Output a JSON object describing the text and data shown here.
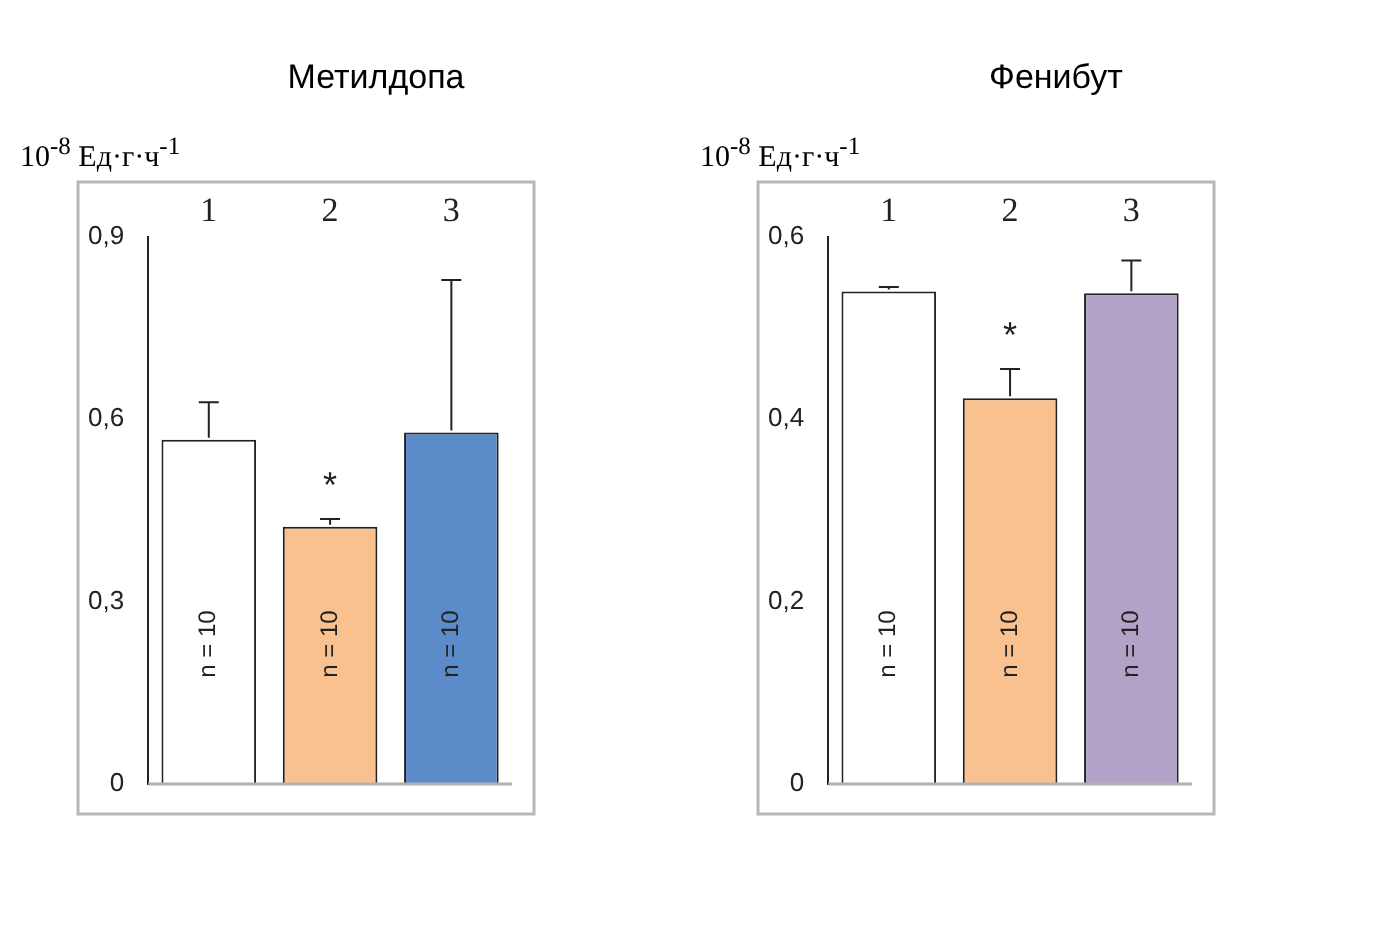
{
  "chart_data": [
    {
      "type": "bar",
      "title": "Метилдопа",
      "ylabel": "10$^{-8}$ Ед·г·ч$^{-1}$",
      "categories": [
        "1",
        "2",
        "3"
      ],
      "series": [
        {
          "colors": [
            "#ffffff",
            "#f8c18f",
            "#5b8bc8"
          ],
          "values": [
            0.566,
            0.423,
            0.578
          ],
          "errors": [
            [
              0.566,
              0.628
            ],
            [
              0.423,
              0.436
            ],
            [
              0.578,
              0.829
            ]
          ]
        }
      ],
      "ylim": [
        0,
        0.9
      ],
      "yticks": [
        {
          "value": 0,
          "label": "0"
        },
        {
          "value": 0.3,
          "label": "0,3"
        },
        {
          "value": 0.6,
          "label": "0,6"
        },
        {
          "value": 0.9,
          "label": "0,9"
        }
      ],
      "grid": false,
      "legend": false,
      "annotations": [
        "n = 10",
        "n = 10",
        "n = 10",
        "*"
      ]
    },
    {
      "type": "bar",
      "title": "Фенибут",
      "ylabel": "10$^{-8}$ Ед·г·ч$^{-1}$",
      "categories": [
        "1",
        "2",
        "3"
      ],
      "series": [
        {
          "colors": [
            "#ffffff",
            "#f8c18f",
            "#b3a2c8"
          ],
          "values": [
            0.54,
            0.423,
            0.538
          ],
          "errors": [
            [
              0.54,
              0.545
            ],
            [
              0.423,
              0.455
            ],
            [
              0.538,
              0.574
            ]
          ]
        }
      ],
      "ylim": [
        0,
        0.6
      ],
      "yticks": [
        {
          "value": 0,
          "label": "0"
        },
        {
          "value": 0.2,
          "label": "0,2"
        },
        {
          "value": 0.4,
          "label": "0,4"
        },
        {
          "value": 0.6,
          "label": "0,6"
        }
      ],
      "grid": false,
      "legend": false,
      "annotations": [
        "n = 10",
        "n = 10",
        "n = 10",
        "*"
      ]
    }
  ]
}
